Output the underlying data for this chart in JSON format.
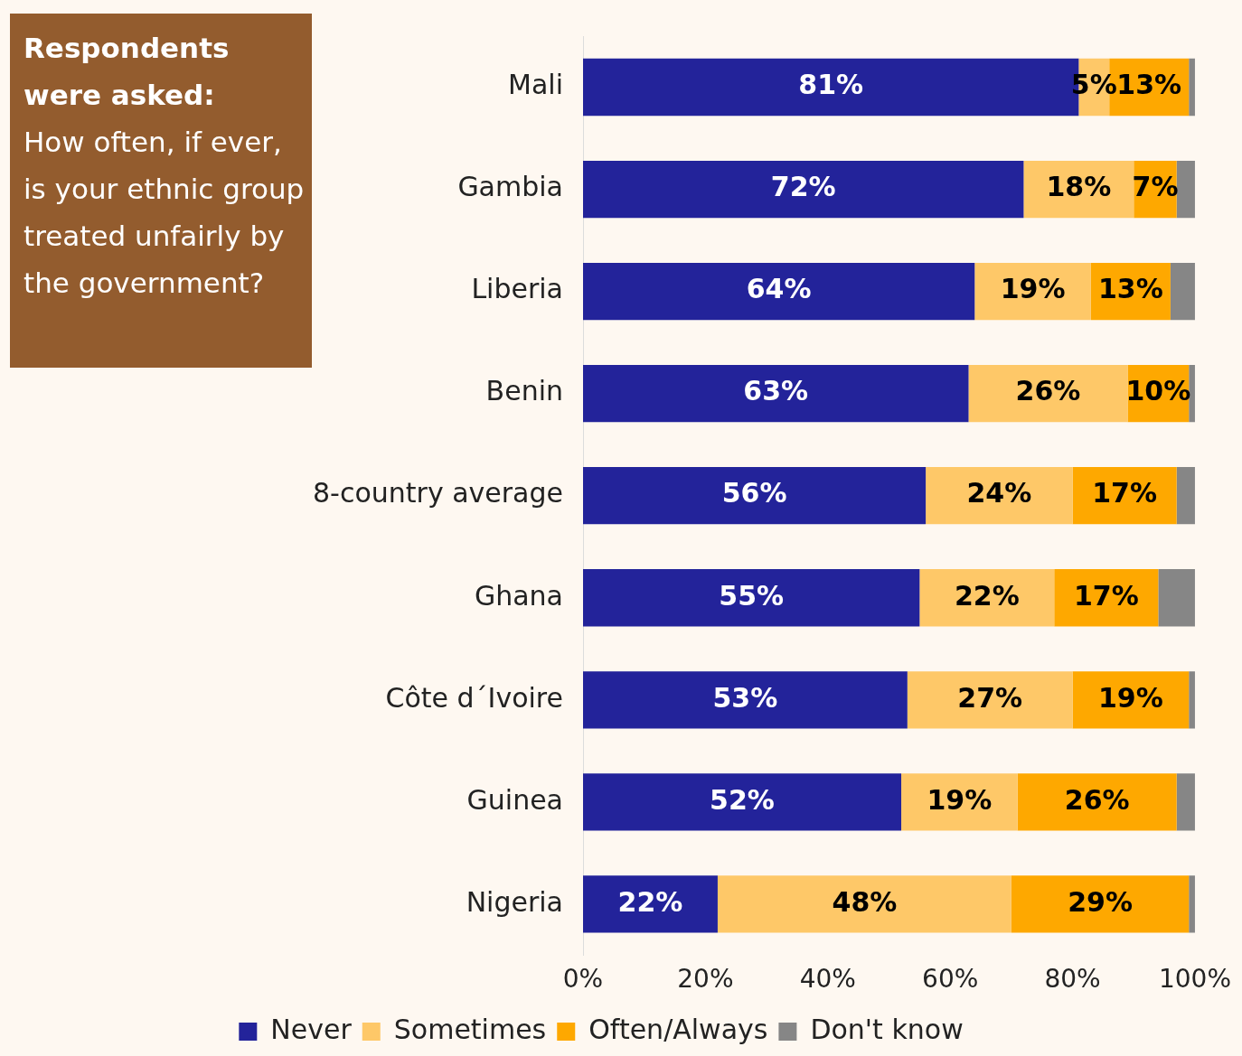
{
  "chart_data": {
    "type": "bar",
    "orientation": "horizontal",
    "stacked": true,
    "title": "Respondents were asked:",
    "subtitle": "How often, if ever, is your ethnic group treated unfairly by the government?",
    "categories": [
      "Mali",
      "Gambia",
      "Liberia",
      "Benin",
      "8-country average",
      "Ghana",
      "Côte d´Ivoire",
      "Guinea",
      "Nigeria"
    ],
    "series": [
      {
        "name": "Never",
        "color": "#23239a",
        "values": [
          81,
          72,
          64,
          63,
          56,
          55,
          53,
          52,
          22
        ],
        "value_labels": [
          "81%",
          "72%",
          "64%",
          "63%",
          "56%",
          "55%",
          "53%",
          "52%",
          "22%"
        ]
      },
      {
        "name": "Sometimes",
        "color": "#fec868",
        "values": [
          5,
          18,
          19,
          26,
          24,
          22,
          27,
          19,
          48
        ],
        "value_labels": [
          "5%",
          "18%",
          "19%",
          "26%",
          "24%",
          "22%",
          "27%",
          "19%",
          "48%"
        ]
      },
      {
        "name": "Often/Always",
        "color": "#fea800",
        "values": [
          13,
          7,
          13,
          10,
          17,
          17,
          19,
          26,
          29
        ],
        "value_labels": [
          "13%",
          "7%",
          "13%",
          "10%",
          "17%",
          "17%",
          "19%",
          "26%",
          "29%"
        ]
      },
      {
        "name": "Don't know",
        "color": "#868686",
        "values": [
          1,
          3,
          4,
          1,
          3,
          6,
          1,
          3,
          1
        ]
      }
    ],
    "xlim": [
      0,
      100
    ],
    "xticks": [
      {
        "value": 0,
        "label": "0%"
      },
      {
        "value": 20,
        "label": "20%"
      },
      {
        "value": 40,
        "label": "40%"
      },
      {
        "value": 60,
        "label": "60%"
      },
      {
        "value": 80,
        "label": "80%"
      },
      {
        "value": 100,
        "label": "100%"
      }
    ],
    "grid": false,
    "legend": "bottom"
  }
}
